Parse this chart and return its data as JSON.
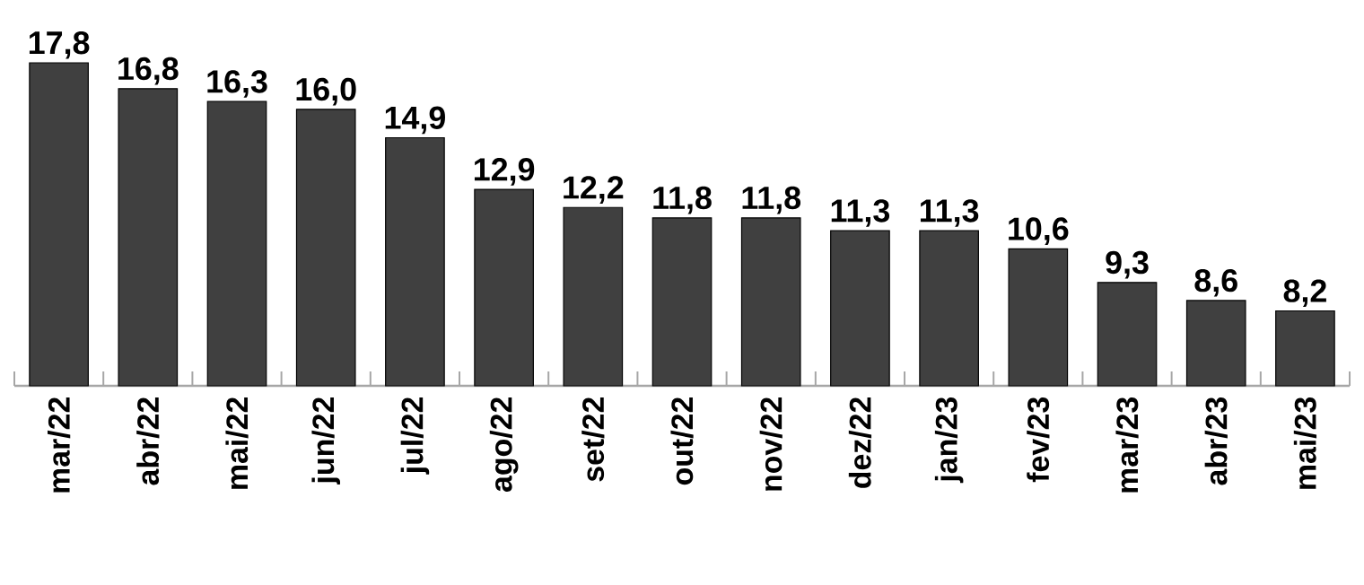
{
  "chart_data": {
    "type": "bar",
    "categories": [
      "mar/22",
      "abr/22",
      "mai/22",
      "jun/22",
      "jul/22",
      "ago/22",
      "set/22",
      "out/22",
      "nov/22",
      "dez/22",
      "jan/23",
      "fev/23",
      "mar/23",
      "abr/23",
      "mai/23"
    ],
    "values": [
      17.8,
      16.8,
      16.3,
      16.0,
      14.9,
      12.9,
      12.2,
      11.8,
      11.8,
      11.3,
      11.3,
      10.6,
      9.3,
      8.6,
      8.2
    ],
    "value_labels": [
      "17,8",
      "16,8",
      "16,3",
      "16,0",
      "14,9",
      "12,9",
      "12,2",
      "11,8",
      "11,8",
      "11,3",
      "11,3",
      "10,6",
      "9,3",
      "8,6",
      "8,2"
    ],
    "color": "#404040",
    "ylim": [
      5.3,
      17.8
    ],
    "tick_labels": "x"
  }
}
